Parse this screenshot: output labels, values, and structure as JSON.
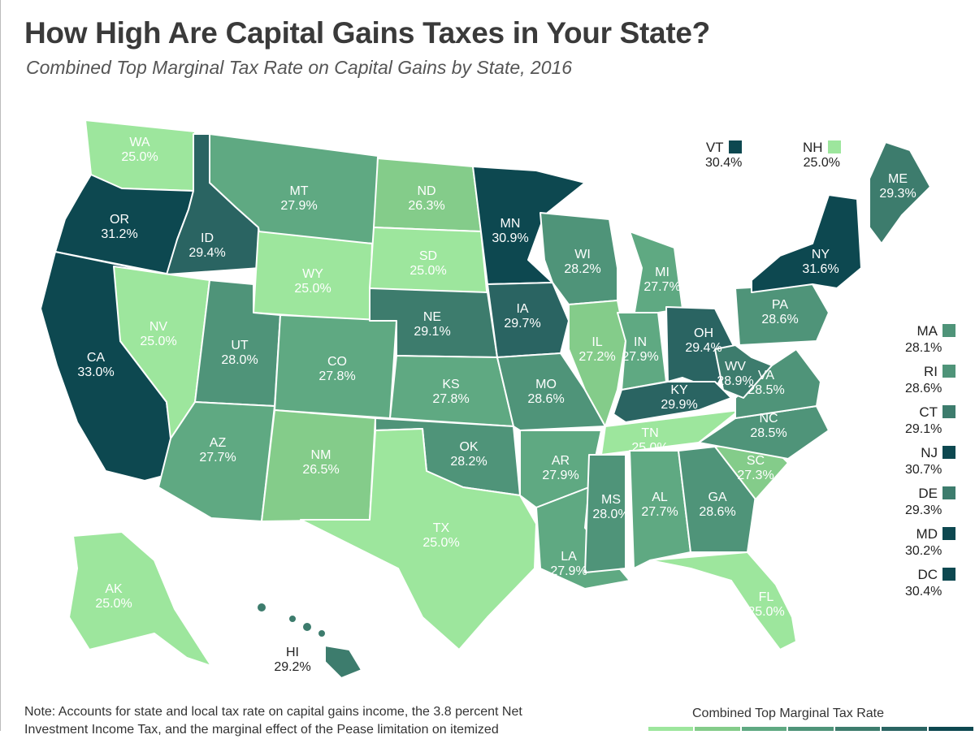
{
  "title": "How High Are Capital Gains Taxes in Your State?",
  "subtitle": "Combined Top Marginal Tax Rate on Capital Gains by State, 2016",
  "colors": {
    "c0": "#9de69d",
    "c1": "#84cc8a",
    "c2": "#5fa982",
    "c3": "#4f9479",
    "c4": "#3d7c6d",
    "c5": "#2a6462",
    "c6": "#0d4850"
  },
  "states": [
    {
      "code": "WA",
      "value": "25.0%",
      "bucket": "c0"
    },
    {
      "code": "OR",
      "value": "31.2%",
      "bucket": "c6"
    },
    {
      "code": "CA",
      "value": "33.0%",
      "bucket": "c6"
    },
    {
      "code": "ID",
      "value": "29.4%",
      "bucket": "c5"
    },
    {
      "code": "NV",
      "value": "25.0%",
      "bucket": "c0"
    },
    {
      "code": "MT",
      "value": "27.9%",
      "bucket": "c2"
    },
    {
      "code": "WY",
      "value": "25.0%",
      "bucket": "c0"
    },
    {
      "code": "UT",
      "value": "28.0%",
      "bucket": "c3"
    },
    {
      "code": "AZ",
      "value": "27.7%",
      "bucket": "c2"
    },
    {
      "code": "CO",
      "value": "27.8%",
      "bucket": "c2"
    },
    {
      "code": "NM",
      "value": "26.5%",
      "bucket": "c1"
    },
    {
      "code": "ND",
      "value": "26.3%",
      "bucket": "c1"
    },
    {
      "code": "SD",
      "value": "25.0%",
      "bucket": "c0"
    },
    {
      "code": "NE",
      "value": "29.1%",
      "bucket": "c4"
    },
    {
      "code": "KS",
      "value": "27.8%",
      "bucket": "c2"
    },
    {
      "code": "OK",
      "value": "28.2%",
      "bucket": "c3"
    },
    {
      "code": "TX",
      "value": "25.0%",
      "bucket": "c0"
    },
    {
      "code": "MN",
      "value": "30.9%",
      "bucket": "c6"
    },
    {
      "code": "IA",
      "value": "29.7%",
      "bucket": "c5"
    },
    {
      "code": "MO",
      "value": "28.6%",
      "bucket": "c3"
    },
    {
      "code": "AR",
      "value": "27.9%",
      "bucket": "c2"
    },
    {
      "code": "LA",
      "value": "27.9%",
      "bucket": "c2"
    },
    {
      "code": "WI",
      "value": "28.2%",
      "bucket": "c3"
    },
    {
      "code": "IL",
      "value": "27.2%",
      "bucket": "c1"
    },
    {
      "code": "MI",
      "value": "27.7%",
      "bucket": "c2"
    },
    {
      "code": "IN",
      "value": "27.9%",
      "bucket": "c2"
    },
    {
      "code": "OH",
      "value": "29.4%",
      "bucket": "c5"
    },
    {
      "code": "KY",
      "value": "29.9%",
      "bucket": "c5"
    },
    {
      "code": "TN",
      "value": "25.0%",
      "bucket": "c0"
    },
    {
      "code": "MS",
      "value": "28.0%",
      "bucket": "c3"
    },
    {
      "code": "AL",
      "value": "27.7%",
      "bucket": "c2"
    },
    {
      "code": "GA",
      "value": "28.6%",
      "bucket": "c3"
    },
    {
      "code": "FL",
      "value": "25.0%",
      "bucket": "c0"
    },
    {
      "code": "SC",
      "value": "27.3%",
      "bucket": "c1"
    },
    {
      "code": "NC",
      "value": "28.5%",
      "bucket": "c3"
    },
    {
      "code": "VA",
      "value": "28.5%",
      "bucket": "c3"
    },
    {
      "code": "WV",
      "value": "28.9%",
      "bucket": "c4"
    },
    {
      "code": "PA",
      "value": "28.6%",
      "bucket": "c3"
    },
    {
      "code": "NY",
      "value": "31.6%",
      "bucket": "c6"
    },
    {
      "code": "ME",
      "value": "29.3%",
      "bucket": "c4"
    },
    {
      "code": "AK",
      "value": "25.0%",
      "bucket": "c0"
    },
    {
      "code": "HI",
      "value": "29.2%",
      "bucket": "c4"
    }
  ],
  "callouts_top": [
    {
      "code": "VT",
      "value": "30.4%",
      "bucket": "c6"
    },
    {
      "code": "NH",
      "value": "25.0%",
      "bucket": "c0"
    }
  ],
  "callouts_right": [
    {
      "code": "MA",
      "value": "28.1%",
      "bucket": "c3"
    },
    {
      "code": "RI",
      "value": "28.6%",
      "bucket": "c3"
    },
    {
      "code": "CT",
      "value": "29.1%",
      "bucket": "c4"
    },
    {
      "code": "NJ",
      "value": "30.7%",
      "bucket": "c6"
    },
    {
      "code": "DE",
      "value": "29.3%",
      "bucket": "c4"
    },
    {
      "code": "MD",
      "value": "30.2%",
      "bucket": "c6"
    },
    {
      "code": "DC",
      "value": "30.4%",
      "bucket": "c6"
    }
  ],
  "note": "Note: Accounts for state and local tax rate on capital gains income, the 3.8 percent Net Investment Income Tax, and the marginal effect of the Pease limitation on itemized",
  "scale": {
    "title": "Combined Top Marginal Tax Rate",
    "buckets": [
      "c0",
      "c1",
      "c2",
      "c3",
      "c4",
      "c5",
      "c6"
    ]
  }
}
